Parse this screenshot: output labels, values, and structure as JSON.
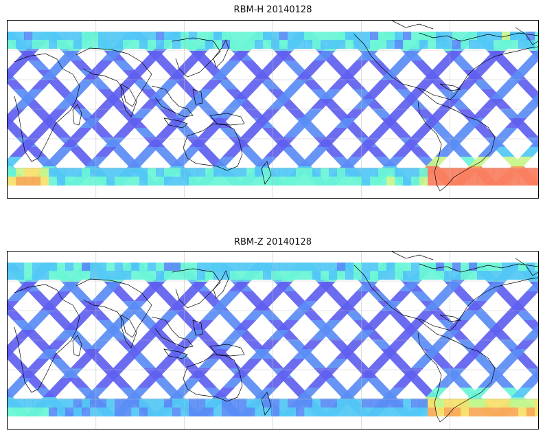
{
  "figure": {
    "panels": [
      {
        "id": "rbm-h",
        "title": "RBM-H 20140128",
        "hot_south": 1
      },
      {
        "id": "rbm-z",
        "title": "RBM-Z 20140128",
        "hot_south": 0.55
      }
    ],
    "colormap": [
      "#6060f0",
      "#5a8cf5",
      "#52c8f5",
      "#6af5d6",
      "#c8f58a",
      "#f5e06a",
      "#f7a858",
      "#f87e60"
    ],
    "lon_range": [
      20,
      380
    ],
    "lat_range": [
      -90,
      90
    ],
    "gridlines": true
  }
}
